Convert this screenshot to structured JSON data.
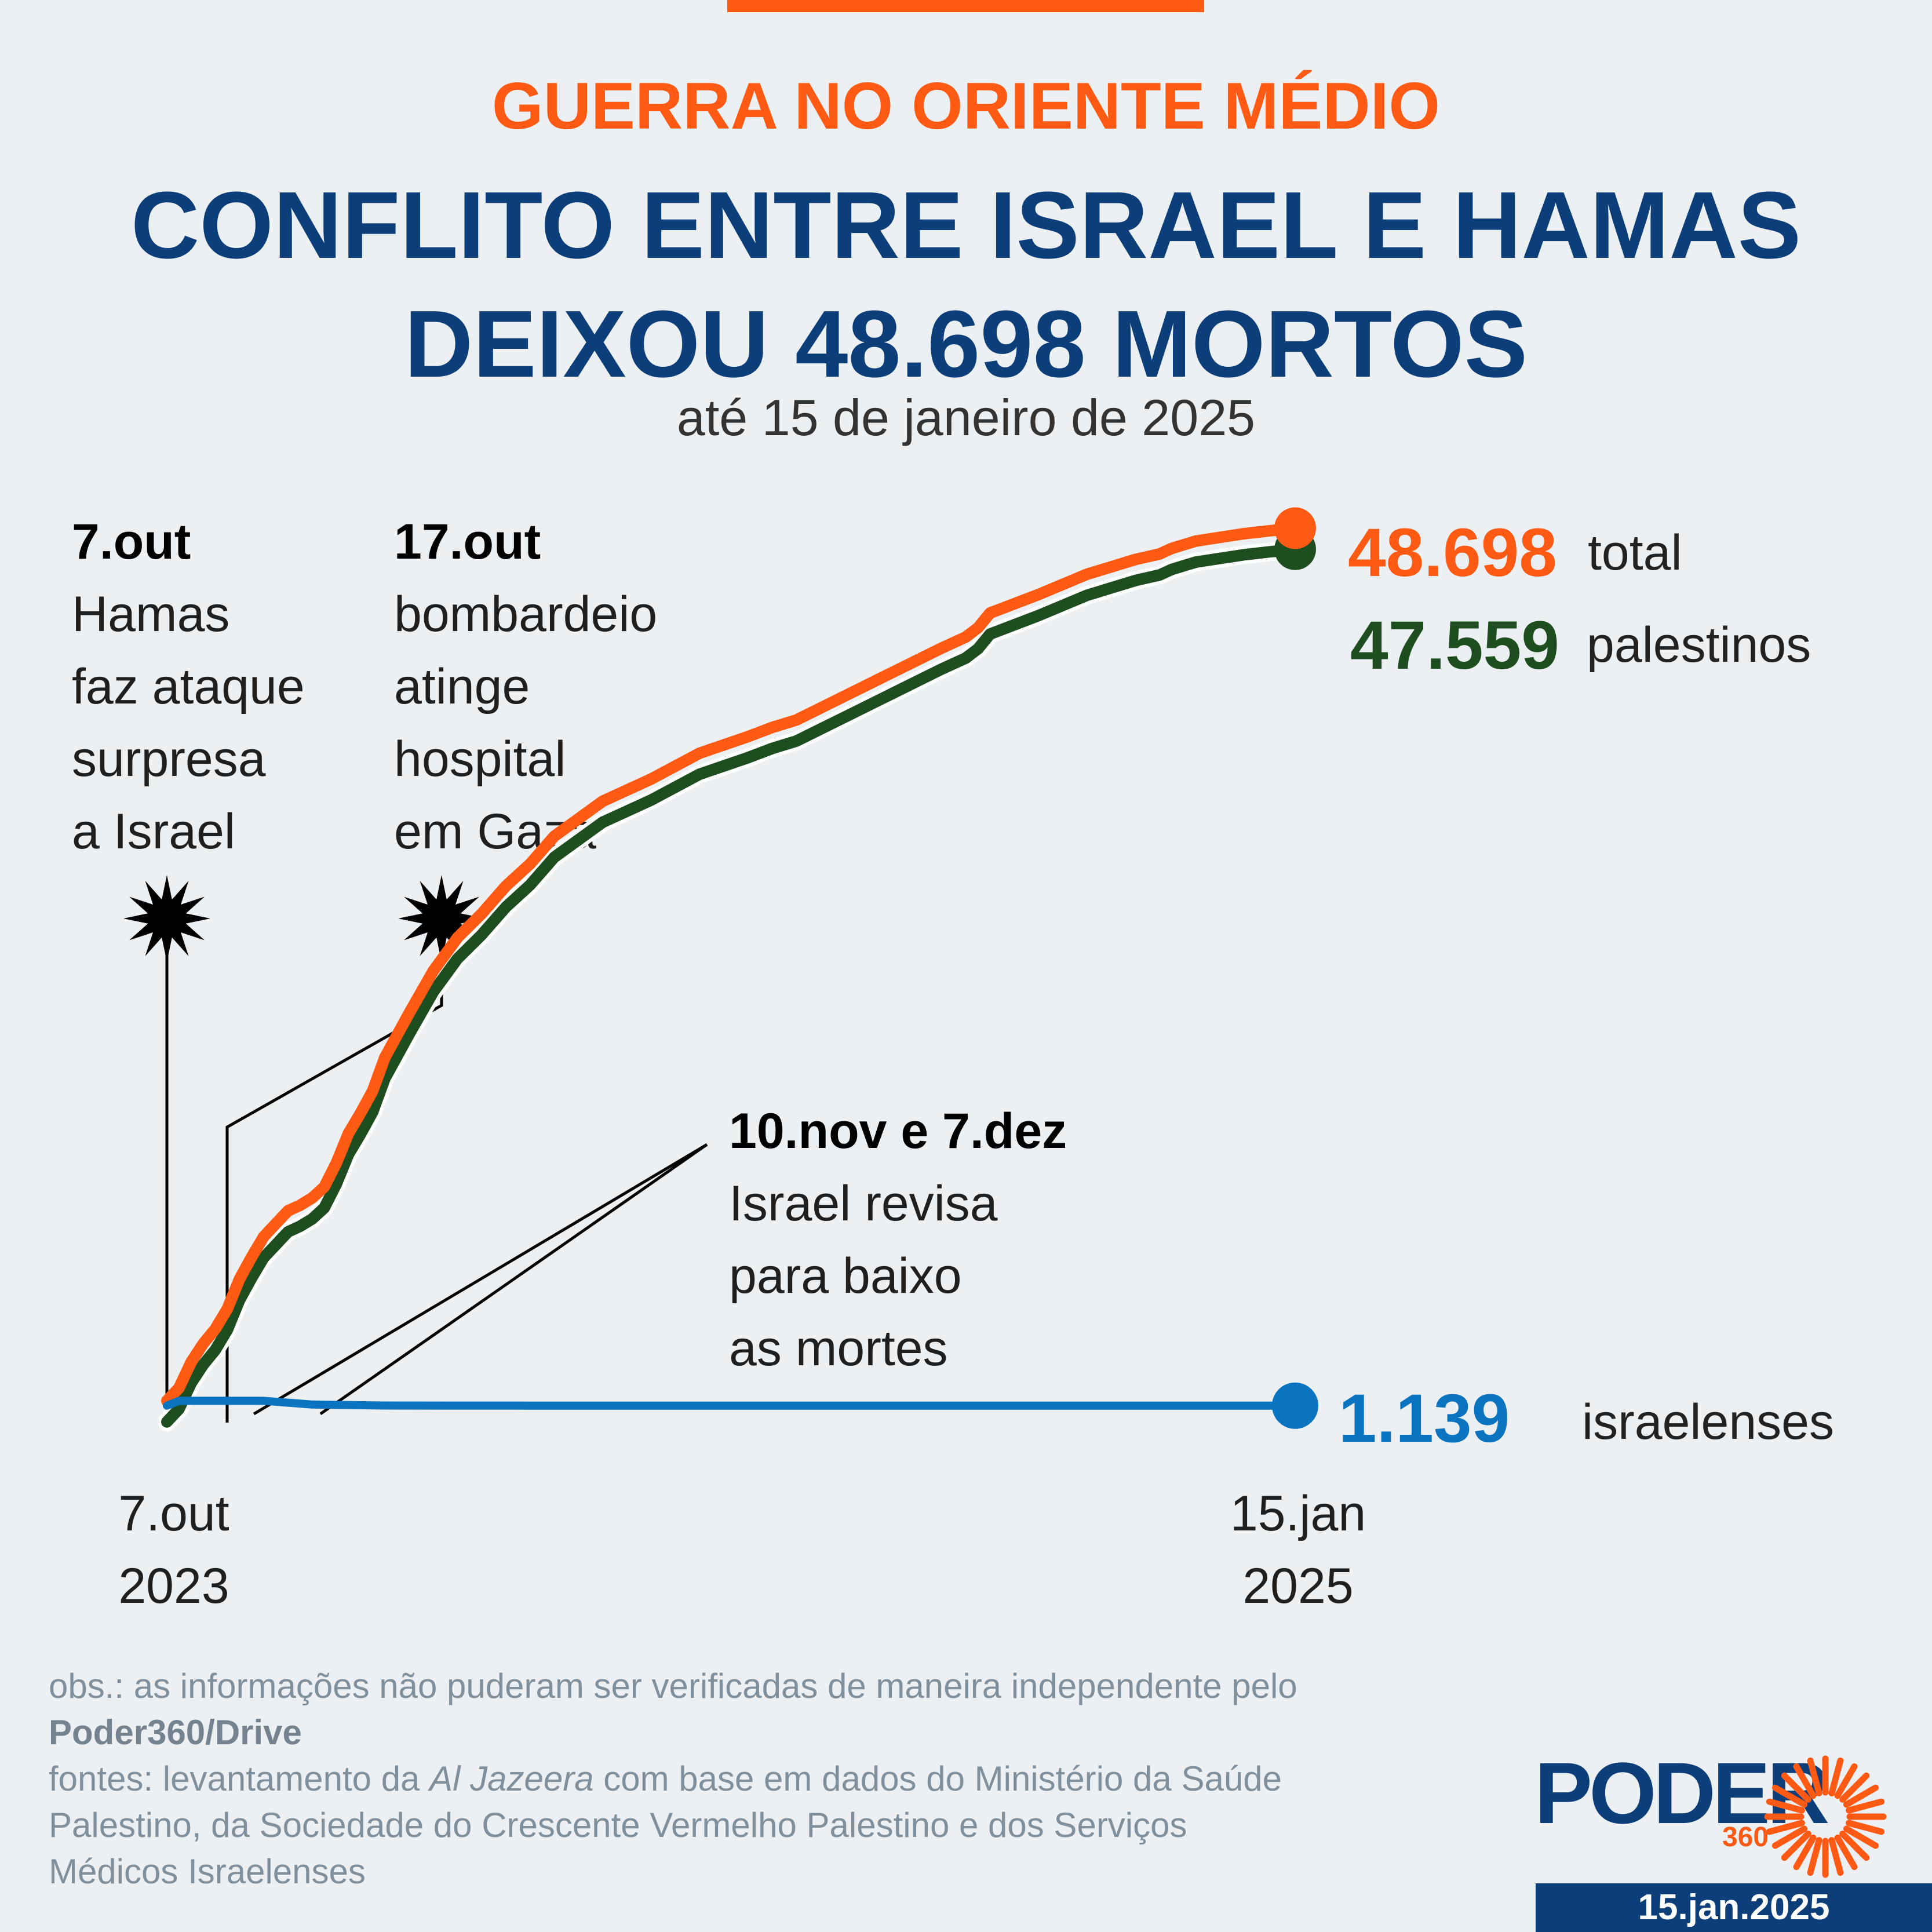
{
  "header": {
    "kicker": "GUERRA NO ORIENTE MÉDIO",
    "title_line1": "CONFLITO ENTRE ISRAEL E HAMAS",
    "title_line2": "DEIXOU 48.698 MORTOS",
    "subtitle": "até 15 de janeiro de 2025"
  },
  "annotations": [
    {
      "date": "7.out",
      "lines": [
        "Hamas",
        "faz ataque",
        "surpresa",
        "a Israel"
      ]
    },
    {
      "date": "17.out",
      "lines": [
        "bombardeio",
        "atinge",
        "hospital",
        "em Gaza"
      ]
    },
    {
      "date": "10.nov e 7.dez",
      "lines": [
        "Israel revisa",
        "para baixo",
        "as mortes"
      ]
    }
  ],
  "labels": {
    "total_value": "48.698",
    "total_suffix": "total",
    "pal_value": "47.559",
    "pal_suffix": "palestinos",
    "isr_value": "1.139",
    "isr_suffix": "israelenses"
  },
  "colors": {
    "total": "#ff5a14",
    "palestinians": "#1e4d20",
    "israelis": "#0a74c0",
    "brand": "#0c3e7a"
  },
  "chart_data": {
    "type": "line",
    "title": "Conflito entre Israel e Hamas deixou 48.698 mortos",
    "x_unit": "days since 7.out.2023",
    "x_ticks": [
      {
        "x": 0,
        "line1": "7.out",
        "line2": "2023"
      },
      {
        "x": 466,
        "line1": "15.jan",
        "line2": "2025"
      }
    ],
    "ylim": [
      0,
      50000
    ],
    "series": [
      {
        "name": "total",
        "color": "#ff5a14",
        "x": [
          0,
          5,
          10,
          15,
          20,
          25,
          30,
          35,
          40,
          45,
          50,
          55,
          60,
          65,
          70,
          75,
          80,
          85,
          90,
          100,
          110,
          120,
          130,
          140,
          150,
          160,
          180,
          200,
          220,
          240,
          250,
          260,
          280,
          300,
          320,
          330,
          335,
          340,
          360,
          380,
          400,
          410,
          415,
          420,
          425,
          435,
          445,
          455,
          466
        ],
        "y": [
          1400,
          2100,
          3500,
          4500,
          5300,
          6400,
          8000,
          9200,
          10300,
          11000,
          11700,
          12000,
          12400,
          13000,
          14300,
          15900,
          17000,
          18200,
          20000,
          22400,
          24700,
          26500,
          27800,
          29300,
          30500,
          32000,
          33900,
          35100,
          36500,
          37400,
          37900,
          38300,
          39600,
          40900,
          42200,
          42800,
          43300,
          44100,
          45100,
          46200,
          47000,
          47300,
          47600,
          47800,
          48000,
          48200,
          48400,
          48550,
          48698
        ]
      },
      {
        "name": "palestinos",
        "color": "#1e4d20",
        "x": [
          0,
          5,
          10,
          15,
          20,
          25,
          30,
          35,
          40,
          45,
          50,
          55,
          60,
          65,
          70,
          75,
          80,
          85,
          90,
          100,
          110,
          120,
          130,
          140,
          150,
          160,
          180,
          200,
          220,
          240,
          250,
          260,
          280,
          300,
          320,
          330,
          335,
          340,
          360,
          380,
          400,
          410,
          415,
          420,
          425,
          435,
          445,
          455,
          466
        ],
        "y": [
          260,
          960,
          2360,
          3360,
          4160,
          5260,
          6860,
          8060,
          9160,
          9860,
          10560,
          10860,
          11260,
          11860,
          13160,
          14760,
          15860,
          17060,
          18860,
          21260,
          23560,
          25360,
          26660,
          28160,
          29360,
          30860,
          32760,
          33960,
          35360,
          36260,
          36760,
          37160,
          38460,
          39760,
          41060,
          41660,
          42160,
          42960,
          43960,
          45060,
          45860,
          46160,
          46460,
          46660,
          46860,
          47060,
          47260,
          47410,
          47559
        ]
      },
      {
        "name": "israelenses",
        "color": "#0a74c0",
        "x": [
          0,
          5,
          10,
          20,
          30,
          40,
          60,
          90,
          150,
          200,
          250,
          300,
          350,
          400,
          466
        ],
        "y": [
          1140,
          1400,
          1405,
          1405,
          1405,
          1405,
          1200,
          1147,
          1139,
          1139,
          1139,
          1139,
          1139,
          1139,
          1139
        ]
      }
    ],
    "markers": [
      {
        "x": 0,
        "label": "7.out"
      },
      {
        "x": 10,
        "label": "17.out"
      },
      {
        "x": 34,
        "label": "10.nov"
      },
      {
        "x": 61,
        "label": "7.dez"
      }
    ]
  },
  "footer": {
    "obs": "obs.: as informações não puderam ser verificadas de maneira independente pelo",
    "obs_brand": "Poder360/Drive",
    "src_pre": "fontes: levantamento da ",
    "src_italic": "Al Jazeera",
    "src_post": " com base em dados do Ministério da Saúde",
    "src_line2": "Palestino, da Sociedade do Crescente Vermelho Palestino e dos Serviços",
    "src_line3": "Médicos Israelenses"
  },
  "brand": {
    "word": "PODER",
    "number": "360",
    "date": "15.jan.2025"
  }
}
